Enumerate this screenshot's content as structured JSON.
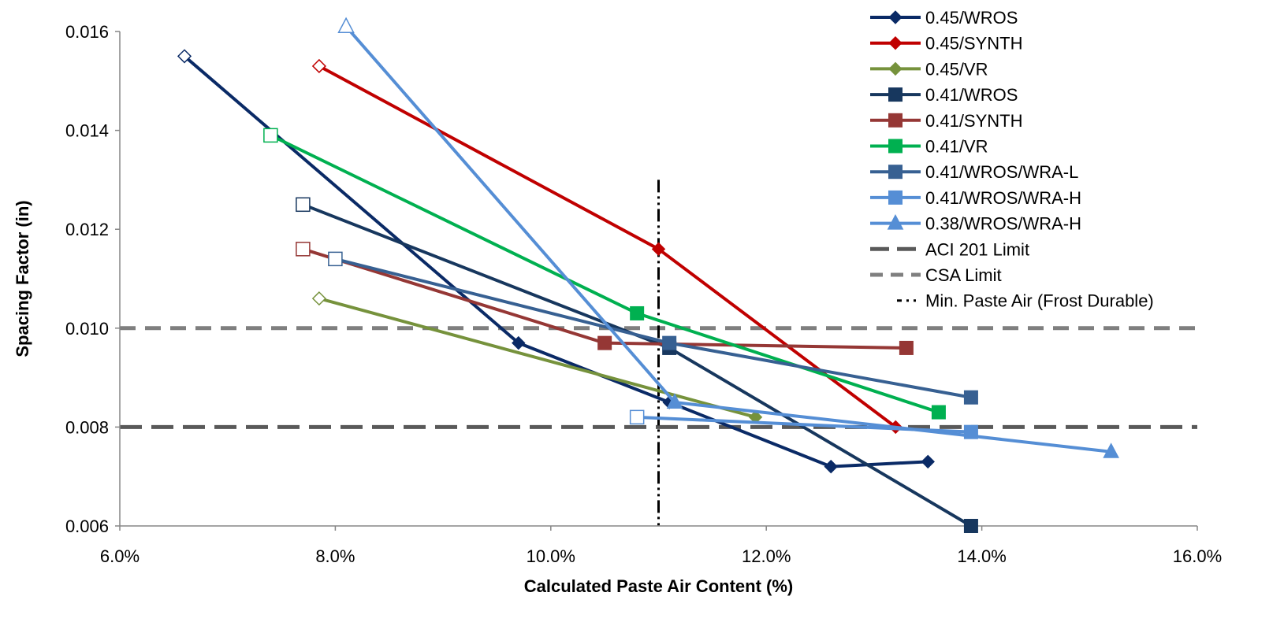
{
  "chart_data": {
    "type": "line",
    "title": "",
    "xlabel": "Calculated Paste Air Content (%)",
    "ylabel": "Spacing Factor (in)",
    "xlim": [
      6.0,
      16.0
    ],
    "ylim": [
      0.006,
      0.016
    ],
    "x_ticks": [
      6,
      8,
      10,
      12,
      14,
      16
    ],
    "x_tick_labels": [
      "6.0%",
      "8.0%",
      "10.0%",
      "12.0%",
      "14.0%",
      "16.0%"
    ],
    "y_ticks": [
      0.006,
      0.008,
      0.01,
      0.012,
      0.014,
      0.016
    ],
    "y_tick_labels": [
      "0.006",
      "0.008",
      "0.010",
      "0.012",
      "0.014",
      "0.016"
    ],
    "grid": false,
    "legend_position": "top-right",
    "series": [
      {
        "name": "0.45/WROS",
        "color": "#0a2a66",
        "marker": "diamond",
        "x": [
          6.6,
          9.7,
          11.1,
          12.6,
          13.5
        ],
        "y": [
          0.0155,
          0.0097,
          0.0085,
          0.0072,
          0.0073
        ]
      },
      {
        "name": "0.45/SYNTH",
        "color": "#c00000",
        "marker": "diamond",
        "x": [
          7.85,
          11.0,
          13.2
        ],
        "y": [
          0.0153,
          0.0116,
          0.008
        ]
      },
      {
        "name": "0.45/VR",
        "color": "#76923c",
        "marker": "diamond",
        "x": [
          7.85,
          11.9
        ],
        "y": [
          0.0106,
          0.0082
        ]
      },
      {
        "name": "0.41/WROS",
        "color": "#17375e",
        "marker": "square",
        "x": [
          7.7,
          11.1,
          13.9
        ],
        "y": [
          0.0125,
          0.0096,
          0.006
        ]
      },
      {
        "name": "0.41/SYNTH",
        "color": "#953735",
        "marker": "square",
        "x": [
          7.7,
          10.5,
          13.3
        ],
        "y": [
          0.0116,
          0.0097,
          0.0096
        ]
      },
      {
        "name": "0.41/VR",
        "color": "#00b050",
        "marker": "square",
        "x": [
          7.4,
          10.8,
          13.6
        ],
        "y": [
          0.0139,
          0.0103,
          0.0083
        ]
      },
      {
        "name": "0.41/WROS/WRA-L",
        "color": "#376092",
        "marker": "square",
        "x": [
          8.0,
          11.1,
          13.9
        ],
        "y": [
          0.0114,
          0.0097,
          0.0086
        ]
      },
      {
        "name": "0.41/WROS/WRA-H",
        "color": "#558ed5",
        "marker": "square",
        "x": [
          10.8,
          13.9
        ],
        "y": [
          0.0082,
          0.0079
        ]
      },
      {
        "name": "0.38/WROS/WRA-H",
        "color": "#558ed5",
        "marker": "triangle",
        "x": [
          8.1,
          11.15,
          15.2
        ],
        "y": [
          0.0161,
          0.0085,
          0.0075
        ]
      }
    ],
    "reference_lines": [
      {
        "name": "ACI 201 Limit",
        "orientation": "horizontal",
        "value": 0.008,
        "color": "#595959",
        "style": "long-dash"
      },
      {
        "name": "CSA Limit",
        "orientation": "horizontal",
        "value": 0.01,
        "color": "#7f7f7f",
        "style": "dash"
      },
      {
        "name": "Min. Paste Air (Frost Durable)",
        "orientation": "vertical",
        "value": 11.0,
        "y_range": [
          0.006,
          0.013
        ],
        "color": "#000000",
        "style": "dash-dot-dot"
      }
    ]
  }
}
